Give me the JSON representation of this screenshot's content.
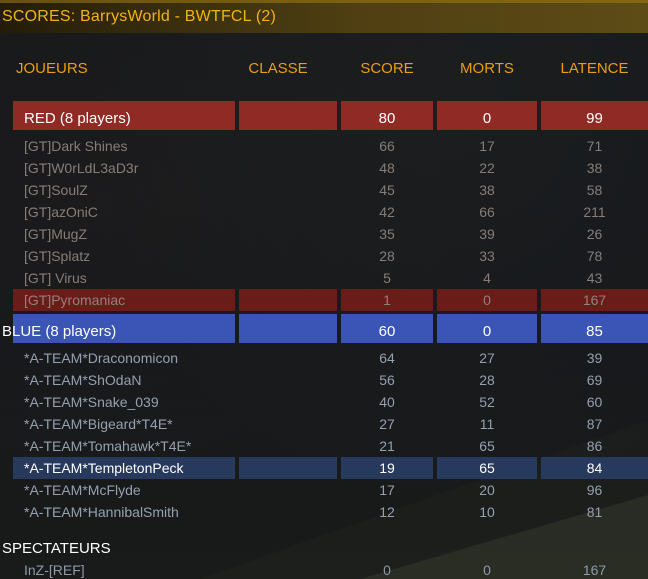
{
  "title": "SCORES: BarrysWorld - BWTFCL (2)",
  "columns": {
    "joueurs": "JOUEURS",
    "classe": "CLASSE",
    "score": "SCORE",
    "morts": "MORTS",
    "latence": "LATENCE"
  },
  "colors": {
    "title-gold": "#f2b40c",
    "header-orange": "#ee9d0f",
    "red-team": "#8f2b24",
    "red-highlight": "#6a1c18",
    "blue-team": "#3a55b5",
    "blue-highlight": "#273a5e",
    "red-player-text": "#867d78",
    "blue-player-text": "#95a0b0",
    "spectator-text": "#8e99a9",
    "banner-text": "#ffffff"
  },
  "table": {
    "rows": [
      {
        "team": "red",
        "kind": "banner",
        "highlighted": false,
        "name": "RED (8 players)",
        "classe": "",
        "score": "80",
        "morts": "0",
        "latence": "99"
      },
      {
        "team": "red",
        "kind": "player",
        "highlighted": false,
        "name": "[GT]Dark Shines",
        "classe": "",
        "score": "66",
        "morts": "17",
        "latence": "71"
      },
      {
        "team": "red",
        "kind": "player",
        "highlighted": false,
        "name": "[GT]W0rLdL3aD3r",
        "classe": "",
        "score": "48",
        "morts": "22",
        "latence": "38"
      },
      {
        "team": "red",
        "kind": "player",
        "highlighted": false,
        "name": "[GT]SoulZ",
        "classe": "",
        "score": "45",
        "morts": "38",
        "latence": "58"
      },
      {
        "team": "red",
        "kind": "player",
        "highlighted": false,
        "name": "[GT]azOniC",
        "classe": "",
        "score": "42",
        "morts": "66",
        "latence": "211"
      },
      {
        "team": "red",
        "kind": "player",
        "highlighted": false,
        "name": "[GT]MugZ",
        "classe": "",
        "score": "35",
        "morts": "39",
        "latence": "26"
      },
      {
        "team": "red",
        "kind": "player",
        "highlighted": false,
        "name": "[GT]Splatz",
        "classe": "",
        "score": "28",
        "morts": "33",
        "latence": "78"
      },
      {
        "team": "red",
        "kind": "player",
        "highlighted": false,
        "name": "[GT] Virus",
        "classe": "",
        "score": "5",
        "morts": "4",
        "latence": "43"
      },
      {
        "team": "red",
        "kind": "player",
        "highlighted": true,
        "name": "[GT]Pyromaniac",
        "classe": "",
        "score": "1",
        "morts": "0",
        "latence": "167"
      },
      {
        "team": "blue",
        "kind": "banner",
        "highlighted": false,
        "name": "BLUE (8 players)",
        "classe": "",
        "score": "60",
        "morts": "0",
        "latence": "85"
      },
      {
        "team": "blue",
        "kind": "player",
        "highlighted": false,
        "name": "*A-TEAM*Draconomicon",
        "classe": "",
        "score": "64",
        "morts": "27",
        "latence": "39"
      },
      {
        "team": "blue",
        "kind": "player",
        "highlighted": false,
        "name": "*A-TEAM*ShOdaN",
        "classe": "",
        "score": "56",
        "morts": "28",
        "latence": "69"
      },
      {
        "team": "blue",
        "kind": "player",
        "highlighted": false,
        "name": "*A-TEAM*Snake_039",
        "classe": "",
        "score": "40",
        "morts": "52",
        "latence": "60"
      },
      {
        "team": "blue",
        "kind": "player",
        "highlighted": false,
        "name": "*A-TEAM*Bigeard*T4E*",
        "classe": "",
        "score": "27",
        "morts": "11",
        "latence": "87"
      },
      {
        "team": "blue",
        "kind": "player",
        "highlighted": false,
        "name": "*A-TEAM*Tomahawk*T4E*",
        "classe": "",
        "score": "21",
        "morts": "65",
        "latence": "86"
      },
      {
        "team": "blue",
        "kind": "player",
        "highlighted": true,
        "name": "*A-TEAM*TempletonPeck",
        "classe": "",
        "score": "19",
        "morts": "65",
        "latence": "84"
      },
      {
        "team": "blue",
        "kind": "player",
        "highlighted": false,
        "name": "*A-TEAM*McFlyde",
        "classe": "",
        "score": "17",
        "morts": "20",
        "latence": "96"
      },
      {
        "team": "blue",
        "kind": "player",
        "highlighted": false,
        "name": "*A-TEAM*HannibalSmith",
        "classe": "",
        "score": "12",
        "morts": "10",
        "latence": "81"
      },
      {
        "team": "spectator",
        "kind": "section",
        "highlighted": false,
        "name": "SPECTATEURS",
        "classe": "",
        "score": "",
        "morts": "",
        "latence": ""
      },
      {
        "team": "spectator",
        "kind": "player",
        "highlighted": false,
        "name": "InZ-[REF]",
        "classe": "",
        "score": "0",
        "morts": "0",
        "latence": "167"
      }
    ]
  }
}
